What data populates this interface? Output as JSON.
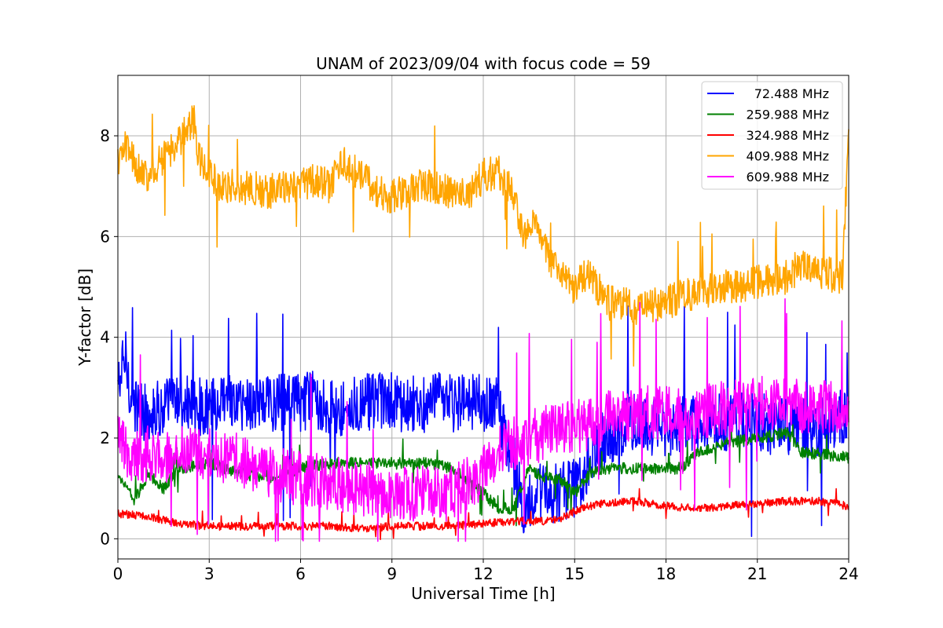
{
  "chart_data": {
    "type": "line",
    "title": "UNAM of 2023/09/04 with focus code = 59",
    "xlabel": "Universal Time [h]",
    "ylabel": "Y-factor [dB]",
    "xlim": [
      0,
      24
    ],
    "ylim": [
      -0.4,
      9.2
    ],
    "xticks": [
      0,
      3,
      6,
      9,
      12,
      15,
      18,
      21,
      24
    ],
    "yticks": [
      0,
      2,
      4,
      6,
      8
    ],
    "grid": true,
    "legend_position": "top-right",
    "series": [
      {
        "name": "72.488 MHz",
        "color": "#0000ff",
        "x": [
          0,
          0.25,
          0.5,
          1,
          1.5,
          2,
          2.5,
          3,
          4,
          5,
          6,
          6.5,
          7,
          7.5,
          8,
          9,
          10,
          11,
          12,
          12.5,
          13,
          13.3,
          13.6,
          14,
          14.5,
          15,
          15.5,
          16,
          16.5,
          17,
          18,
          19,
          20,
          21,
          22,
          23,
          23.8,
          24
        ],
        "y": [
          3.0,
          3.6,
          2.6,
          2.5,
          2.6,
          2.7,
          2.6,
          2.6,
          2.7,
          2.7,
          2.7,
          2.8,
          2.6,
          2.6,
          2.7,
          2.7,
          2.7,
          2.7,
          2.7,
          2.6,
          1.5,
          0.6,
          0.9,
          0.9,
          0.9,
          1.0,
          1.6,
          2.0,
          2.2,
          2.3,
          2.2,
          2.3,
          2.3,
          2.3,
          2.2,
          2.2,
          2.5,
          2.3
        ],
        "noise": 0.6
      },
      {
        "name": "259.988 MHz",
        "color": "#008000",
        "x": [
          0,
          0.3,
          0.5,
          1,
          1.5,
          2,
          3,
          4,
          5,
          6,
          7,
          8,
          9,
          10,
          11,
          12,
          12.5,
          13,
          13.5,
          14,
          14.5,
          15,
          15.5,
          16,
          17,
          18.5,
          19,
          20,
          21,
          22,
          22.5,
          23,
          24
        ],
        "y": [
          1.2,
          1.1,
          0.7,
          1.3,
          1.0,
          1.4,
          1.5,
          1.3,
          1.2,
          1.4,
          1.5,
          1.5,
          1.5,
          1.5,
          1.4,
          0.9,
          0.6,
          0.6,
          1.4,
          1.2,
          1.2,
          0.9,
          1.3,
          1.4,
          1.4,
          1.4,
          1.7,
          1.9,
          2.0,
          2.1,
          1.7,
          1.7,
          1.6
        ],
        "noise": 0.12
      },
      {
        "name": "324.988 MHz",
        "color": "#ff0000",
        "x": [
          0,
          1,
          2,
          3,
          4,
          5,
          6,
          7,
          8,
          9,
          10,
          11,
          12,
          13,
          14,
          14.5,
          15,
          15.5,
          16,
          17,
          18,
          19,
          20,
          21,
          22,
          23,
          24
        ],
        "y": [
          0.5,
          0.45,
          0.3,
          0.25,
          0.25,
          0.25,
          0.25,
          0.25,
          0.2,
          0.25,
          0.25,
          0.25,
          0.3,
          0.35,
          0.35,
          0.4,
          0.55,
          0.65,
          0.7,
          0.75,
          0.65,
          0.6,
          0.65,
          0.7,
          0.75,
          0.75,
          0.65
        ],
        "noise": 0.08
      },
      {
        "name": "409.988 MHz",
        "color": "#ffa500",
        "x": [
          0,
          0.3,
          0.5,
          1,
          1.5,
          2,
          2.5,
          2.6,
          3,
          3.5,
          4,
          5,
          6,
          6.5,
          7,
          7.3,
          8,
          8.5,
          9,
          10,
          11,
          11.5,
          12,
          12.5,
          13,
          13.3,
          13.6,
          14,
          14.5,
          15,
          15.5,
          16,
          17,
          18,
          18.5,
          19,
          20,
          21,
          22,
          22.5,
          23,
          23.8,
          24
        ],
        "y": [
          7.5,
          7.8,
          7.5,
          7.2,
          7.6,
          7.9,
          8.3,
          7.6,
          7.2,
          7.0,
          7.0,
          6.9,
          7.0,
          7.1,
          7.0,
          7.5,
          7.2,
          6.9,
          6.8,
          7.0,
          6.9,
          6.8,
          7.2,
          7.3,
          6.8,
          6.0,
          6.3,
          5.8,
          5.2,
          5.0,
          5.3,
          4.7,
          4.6,
          4.7,
          4.8,
          4.9,
          5.0,
          5.1,
          5.2,
          5.5,
          5.3,
          5.2,
          8.2
        ],
        "noise": 0.35
      },
      {
        "name": "609.988 MHz",
        "color": "#ff00ff",
        "x": [
          0,
          0.5,
          1,
          1.5,
          2,
          3,
          4,
          5,
          6,
          7,
          8,
          9,
          10,
          11,
          11.5,
          12,
          12.5,
          13,
          13.5,
          14,
          15,
          15.5,
          16,
          17,
          18,
          19,
          20,
          21,
          22,
          23,
          24
        ],
        "y": [
          2.0,
          1.6,
          1.7,
          1.5,
          1.8,
          1.7,
          1.6,
          1.3,
          1.2,
          1.1,
          1.0,
          0.9,
          0.9,
          0.9,
          1.1,
          1.3,
          1.7,
          1.9,
          2.0,
          2.1,
          2.2,
          2.3,
          2.4,
          2.5,
          2.5,
          2.5,
          2.6,
          2.7,
          2.7,
          2.6,
          2.6
        ],
        "noise": 0.55
      }
    ]
  }
}
